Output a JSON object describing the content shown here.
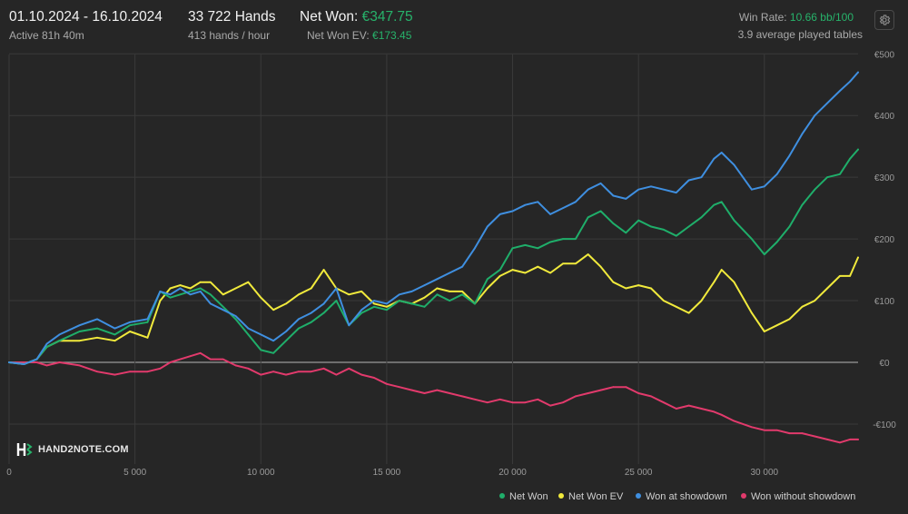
{
  "header": {
    "date_range": "01.10.2024 - 16.10.2024",
    "active": "Active 81h 40m",
    "hands": "33 722 Hands",
    "hands_per_hour": "413 hands / hour",
    "net_won_label": "Net Won: ",
    "net_won_value": "€347.75",
    "ev_label": "Net Won  EV: ",
    "ev_value": "€173.45",
    "win_rate_label": "Win Rate: ",
    "win_rate_value": "10.66 bb/100",
    "tables": "3.9 average played tables",
    "settings_icon": "gear-icon"
  },
  "logo": {
    "text": "HAND2NOTE.COM"
  },
  "colors": {
    "background": "#262626",
    "grid": "#3a3a3a",
    "zero_line": "#9a9a9a",
    "net_won": "#1fae6a",
    "net_won_ev": "#f1ea3c",
    "showdown": "#3f8fe0",
    "non_showdown": "#e23a6c",
    "accent_green": "#27b36b"
  },
  "chart_data": {
    "type": "line",
    "x_ticks": [
      0,
      5000,
      10000,
      15000,
      20000,
      25000,
      30000
    ],
    "x_tick_labels": [
      "0",
      "5 000",
      "10 000",
      "15 000",
      "20 000",
      "25 000",
      "30 000"
    ],
    "y_ticks": [
      -100,
      0,
      100,
      200,
      300,
      400,
      500
    ],
    "y_tick_labels": [
      "-€100",
      "€0",
      "€100",
      "€200",
      "€300",
      "€400",
      "€500"
    ],
    "xlim": [
      0,
      33722
    ],
    "ylim": [
      -145,
      500
    ],
    "grid": true,
    "legend_position": "bottom-right",
    "series": [
      {
        "name": "Net Won",
        "color": "#1fae6a",
        "x": [
          0,
          600,
          1100,
          1500,
          2000,
          2800,
          3500,
          4200,
          4800,
          5500,
          6000,
          6400,
          6800,
          7200,
          7600,
          8000,
          8500,
          9000,
          9500,
          10000,
          10500,
          11000,
          11500,
          12000,
          12500,
          13000,
          13500,
          14000,
          14500,
          15000,
          15500,
          16000,
          16500,
          17000,
          17500,
          18000,
          18500,
          19000,
          19500,
          20000,
          20500,
          21000,
          21500,
          22000,
          22500,
          23000,
          23500,
          24000,
          24500,
          25000,
          25500,
          26000,
          26500,
          27000,
          27500,
          28000,
          28300,
          28800,
          29500,
          30000,
          30500,
          31000,
          31500,
          32000,
          32500,
          33000,
          33400,
          33722
        ],
        "y": [
          0,
          -3,
          5,
          25,
          35,
          50,
          55,
          45,
          60,
          65,
          115,
          105,
          110,
          115,
          120,
          110,
          90,
          70,
          45,
          20,
          15,
          35,
          55,
          65,
          80,
          100,
          60,
          80,
          90,
          85,
          100,
          95,
          90,
          110,
          100,
          110,
          95,
          135,
          150,
          185,
          190,
          185,
          195,
          200,
          200,
          235,
          245,
          225,
          210,
          230,
          220,
          215,
          205,
          220,
          235,
          255,
          260,
          230,
          200,
          175,
          195,
          220,
          255,
          280,
          300,
          305,
          330,
          345
        ]
      },
      {
        "name": "Net Won  EV",
        "color": "#f1ea3c",
        "x": [
          0,
          600,
          1100,
          1500,
          2000,
          2800,
          3500,
          4200,
          4800,
          5500,
          6000,
          6400,
          6800,
          7200,
          7600,
          8000,
          8500,
          9000,
          9500,
          10000,
          10500,
          11000,
          11500,
          12000,
          12500,
          13000,
          13500,
          14000,
          14500,
          15000,
          15500,
          16000,
          16500,
          17000,
          17500,
          18000,
          18500,
          19000,
          19500,
          20000,
          20500,
          21000,
          21500,
          22000,
          22500,
          23000,
          23500,
          24000,
          24500,
          25000,
          25500,
          26000,
          26500,
          27000,
          27500,
          28000,
          28300,
          28800,
          29500,
          30000,
          30500,
          31000,
          31500,
          32000,
          32500,
          33000,
          33400,
          33722
        ],
        "y": [
          0,
          -3,
          5,
          25,
          35,
          35,
          40,
          35,
          50,
          40,
          100,
          120,
          125,
          120,
          130,
          130,
          110,
          120,
          130,
          105,
          85,
          95,
          110,
          120,
          150,
          120,
          110,
          115,
          95,
          90,
          100,
          95,
          105,
          120,
          115,
          115,
          95,
          120,
          140,
          150,
          145,
          155,
          145,
          160,
          160,
          175,
          155,
          130,
          120,
          125,
          120,
          100,
          90,
          80,
          100,
          130,
          150,
          130,
          80,
          50,
          60,
          70,
          90,
          100,
          120,
          140,
          140,
          170
        ]
      },
      {
        "name": "Won at showdown",
        "color": "#3f8fe0",
        "x": [
          0,
          600,
          1100,
          1500,
          2000,
          2800,
          3500,
          4200,
          4800,
          5500,
          6000,
          6400,
          6800,
          7200,
          7600,
          8000,
          8500,
          9000,
          9500,
          10000,
          10500,
          11000,
          11500,
          12000,
          12500,
          13000,
          13500,
          14000,
          14500,
          15000,
          15500,
          16000,
          16500,
          17000,
          17500,
          18000,
          18500,
          19000,
          19500,
          20000,
          20500,
          21000,
          21500,
          22000,
          22500,
          23000,
          23500,
          24000,
          24500,
          25000,
          25500,
          26000,
          26500,
          27000,
          27500,
          28000,
          28300,
          28800,
          29500,
          30000,
          30500,
          31000,
          31500,
          32000,
          32500,
          33000,
          33400,
          33722
        ],
        "y": [
          0,
          -3,
          5,
          30,
          45,
          60,
          70,
          55,
          65,
          70,
          115,
          110,
          120,
          110,
          115,
          95,
          85,
          75,
          55,
          45,
          35,
          50,
          70,
          80,
          95,
          120,
          60,
          85,
          100,
          95,
          110,
          115,
          125,
          135,
          145,
          155,
          185,
          220,
          240,
          245,
          255,
          260,
          240,
          250,
          260,
          280,
          290,
          270,
          265,
          280,
          285,
          280,
          275,
          295,
          300,
          330,
          340,
          320,
          280,
          285,
          305,
          335,
          370,
          400,
          420,
          440,
          455,
          470
        ]
      },
      {
        "name": "Won without showdown",
        "color": "#e23a6c",
        "x": [
          0,
          600,
          1100,
          1500,
          2000,
          2800,
          3500,
          4200,
          4800,
          5500,
          6000,
          6400,
          6800,
          7200,
          7600,
          8000,
          8500,
          9000,
          9500,
          10000,
          10500,
          11000,
          11500,
          12000,
          12500,
          13000,
          13500,
          14000,
          14500,
          15000,
          15500,
          16000,
          16500,
          17000,
          17500,
          18000,
          18500,
          19000,
          19500,
          20000,
          20500,
          21000,
          21500,
          22000,
          22500,
          23000,
          23500,
          24000,
          24500,
          25000,
          25500,
          26000,
          26500,
          27000,
          27500,
          28000,
          28300,
          28800,
          29500,
          30000,
          30500,
          31000,
          31500,
          32000,
          32500,
          33000,
          33400,
          33722
        ],
        "y": [
          0,
          0,
          0,
          -5,
          0,
          -5,
          -15,
          -20,
          -15,
          -15,
          -10,
          0,
          5,
          10,
          15,
          5,
          5,
          -5,
          -10,
          -20,
          -15,
          -20,
          -15,
          -15,
          -10,
          -20,
          -10,
          -20,
          -25,
          -35,
          -40,
          -45,
          -50,
          -45,
          -50,
          -55,
          -60,
          -65,
          -60,
          -65,
          -65,
          -60,
          -70,
          -65,
          -55,
          -50,
          -45,
          -40,
          -40,
          -50,
          -55,
          -65,
          -75,
          -70,
          -75,
          -80,
          -85,
          -95,
          -105,
          -110,
          -110,
          -115,
          -115,
          -120,
          -125,
          -130,
          -125,
          -125
        ]
      }
    ]
  }
}
